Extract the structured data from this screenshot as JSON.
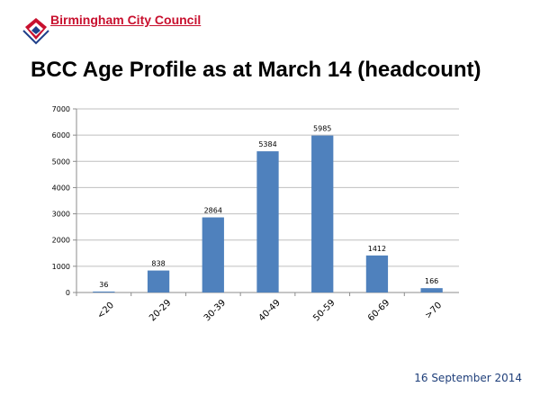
{
  "header": {
    "logo_text": "Birmingham City Council",
    "title": "BCC Age Profile as at March 14 (headcount)"
  },
  "footer": {
    "date": "16 September 2014"
  },
  "colors": {
    "bar": "#4f81bd",
    "logo_red": "#c8102e",
    "logo_blue": "#1f3f8a",
    "date_text": "#1f3f7a"
  },
  "chart_data": {
    "type": "bar",
    "title": "",
    "xlabel": "",
    "ylabel": "",
    "categories": [
      "<20",
      "20-29",
      "30-39",
      "40-49",
      "50-59",
      "60-69",
      ">70"
    ],
    "values": [
      36,
      838,
      2864,
      5384,
      5985,
      1412,
      166
    ],
    "data_labels": [
      "36",
      "838",
      "2864",
      "5384",
      "5985",
      "1412",
      "166"
    ],
    "ylim": [
      0,
      7000
    ],
    "yticks": [
      "0",
      "1000",
      "2000",
      "3000",
      "4000",
      "5000",
      "6000",
      "7000"
    ],
    "grid": true,
    "legend": "none"
  }
}
